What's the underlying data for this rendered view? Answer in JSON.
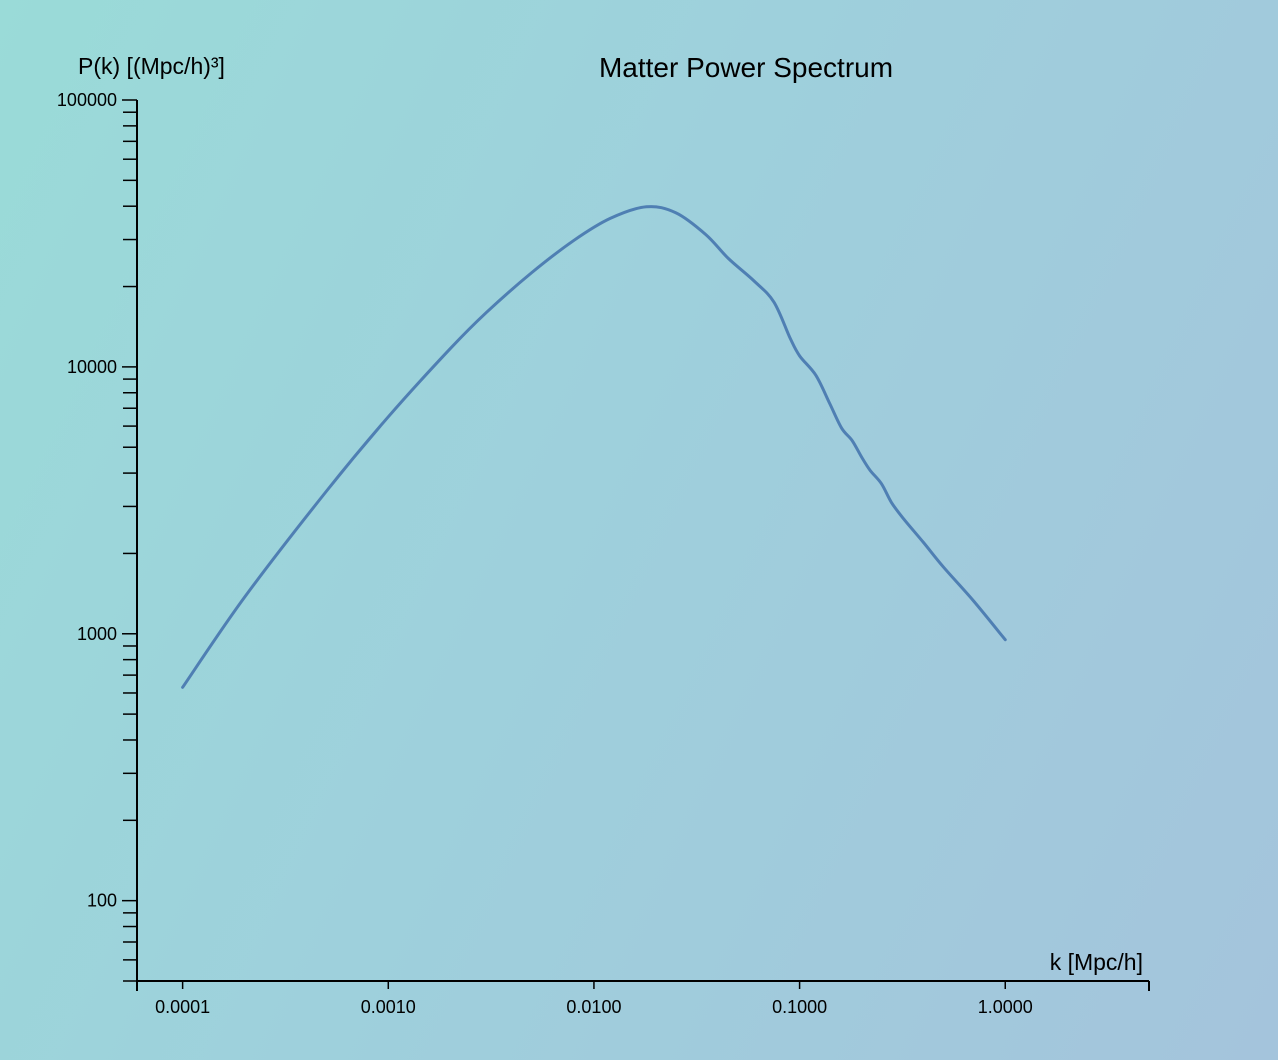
{
  "chart_data": {
    "type": "line",
    "title": "Matter Power Spectrum",
    "xlabel": "k [Mpc/h]",
    "ylabel": "P(k) [(Mpc/h)³]",
    "x_scale": "log",
    "y_scale": "log",
    "xlim": [
      6e-05,
      5
    ],
    "ylim": [
      50,
      100000
    ],
    "x_ticks": [
      {
        "value": 0.0001,
        "label": "0.0001"
      },
      {
        "value": 0.001,
        "label": "0.0010"
      },
      {
        "value": 0.01,
        "label": "0.0100"
      },
      {
        "value": 0.1,
        "label": "0.1000"
      },
      {
        "value": 1,
        "label": "1.0000"
      }
    ],
    "y_ticks": [
      {
        "value": 100,
        "label": "100"
      },
      {
        "value": 1000,
        "label": "1000"
      },
      {
        "value": 10000,
        "label": "10000"
      },
      {
        "value": 100000,
        "label": "100000"
      }
    ],
    "grid": false,
    "line_color": "#4f7fb3",
    "series": [
      {
        "x": [
          0.0001,
          0.0002,
          0.0005,
          0.001,
          0.002,
          0.003,
          0.005,
          0.008,
          0.012,
          0.018,
          0.025,
          0.035,
          0.045,
          0.06,
          0.075,
          0.09,
          0.1,
          0.12,
          0.14,
          0.16,
          0.18,
          0.2,
          0.22,
          0.25,
          0.28,
          0.32,
          0.4,
          0.5,
          0.7,
          1.0
        ],
        "y": [
          630,
          1370,
          3420,
          6500,
          11700,
          16000,
          22600,
          29800,
          36000,
          39800,
          37800,
          31300,
          25500,
          21000,
          17500,
          12800,
          11000,
          9300,
          7300,
          5900,
          5300,
          4600,
          4100,
          3650,
          3100,
          2700,
          2200,
          1780,
          1330,
          950
        ]
      }
    ]
  }
}
